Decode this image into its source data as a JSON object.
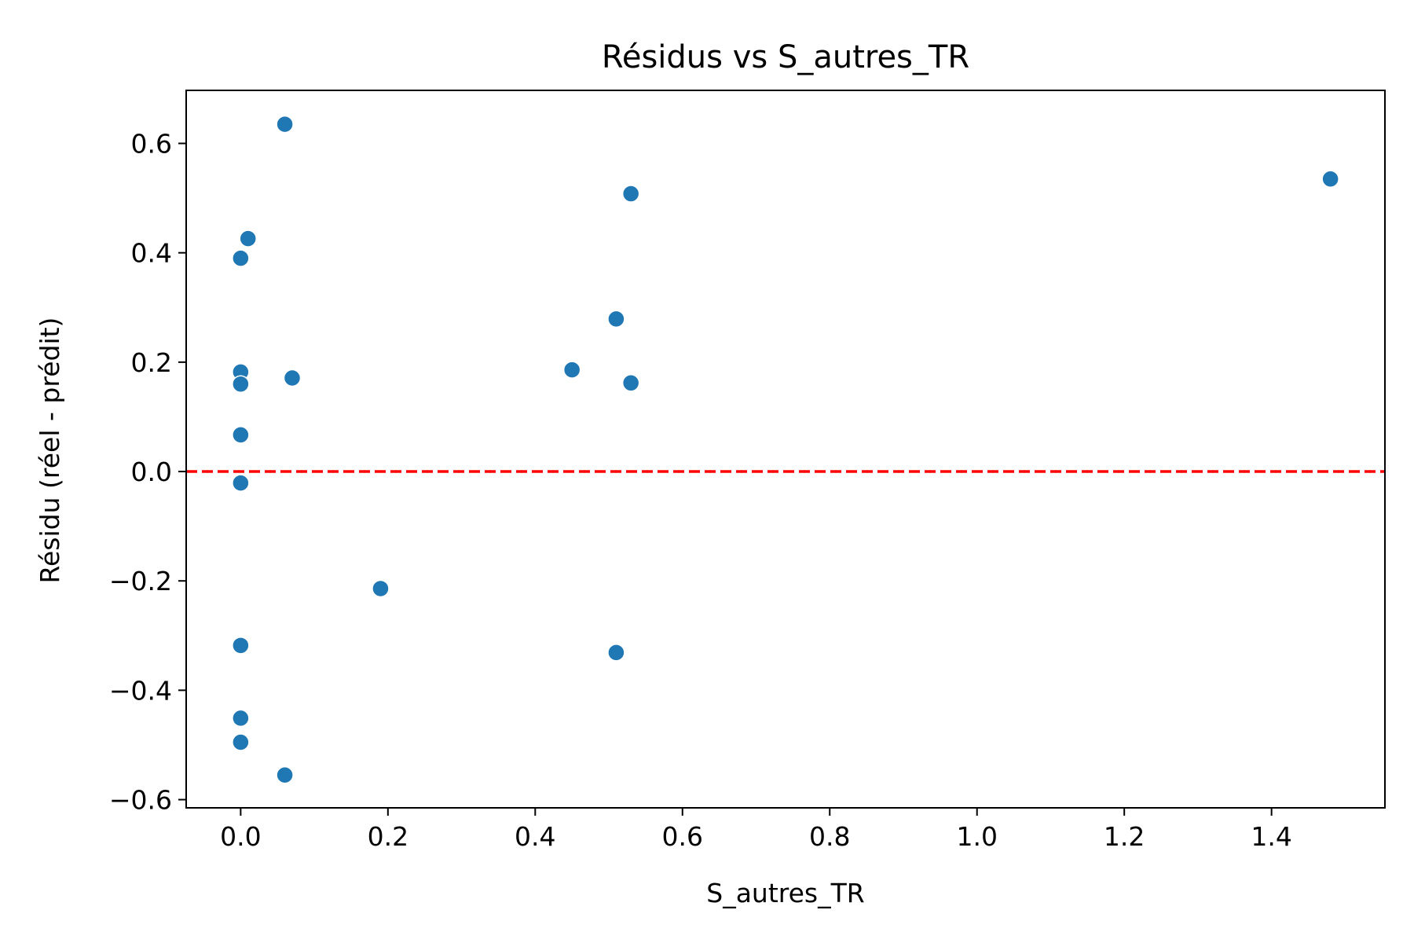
{
  "chart_data": {
    "type": "scatter",
    "title": "Résidus vs S_autres_TR",
    "xlabel": "S_autres_TR",
    "ylabel": "Résidu (réel - prédit)",
    "xlim": [
      -0.074,
      1.554
    ],
    "ylim": [
      -0.615,
      0.697
    ],
    "xticks": [
      0.0,
      0.2,
      0.4,
      0.6,
      0.8,
      1.0,
      1.2,
      1.4
    ],
    "xtick_labels": [
      "0.0",
      "0.2",
      "0.4",
      "0.6",
      "0.8",
      "1.0",
      "1.2",
      "1.4"
    ],
    "yticks": [
      -0.6,
      -0.4,
      -0.2,
      0.0,
      0.2,
      0.4,
      0.6
    ],
    "ytick_labels": [
      "−0.6",
      "−0.4",
      "−0.2",
      "0.0",
      "0.2",
      "0.4",
      "0.6"
    ],
    "grid": false,
    "marker_color": "#1f77b4",
    "reference_line": {
      "y": 0.0,
      "style": "dashed",
      "color": "#ff0000"
    },
    "points": [
      {
        "x": 0.06,
        "y": 0.635
      },
      {
        "x": 0.01,
        "y": 0.426
      },
      {
        "x": 0.0,
        "y": 0.39
      },
      {
        "x": 0.0,
        "y": 0.182
      },
      {
        "x": 0.0,
        "y": 0.16
      },
      {
        "x": 0.07,
        "y": 0.171
      },
      {
        "x": 0.0,
        "y": 0.067
      },
      {
        "x": 0.0,
        "y": -0.021
      },
      {
        "x": 0.19,
        "y": -0.214
      },
      {
        "x": 0.0,
        "y": -0.318
      },
      {
        "x": 0.0,
        "y": -0.451
      },
      {
        "x": 0.0,
        "y": -0.495
      },
      {
        "x": 0.06,
        "y": -0.555
      },
      {
        "x": 0.45,
        "y": 0.186
      },
      {
        "x": 0.51,
        "y": 0.279
      },
      {
        "x": 0.53,
        "y": 0.508
      },
      {
        "x": 0.53,
        "y": 0.162
      },
      {
        "x": 0.51,
        "y": -0.331
      },
      {
        "x": 1.48,
        "y": 0.535
      }
    ]
  }
}
